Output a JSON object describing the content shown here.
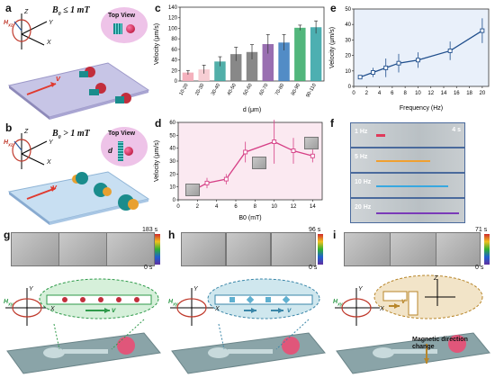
{
  "panels": {
    "a": {
      "label": "a",
      "condition": "B",
      "condition_sub": "0",
      "condition_rest": " ≤ 1 mT",
      "field": "H",
      "field_sub": "xz",
      "top_view": "Top View",
      "velocity": "v",
      "axis_x": "X",
      "axis_y": "Y",
      "axis_z": "Z"
    },
    "b": {
      "label": "b",
      "condition": "B",
      "condition_sub": "0",
      "condition_rest": " > 1 mT",
      "field": "H",
      "field_sub": "xz",
      "top_view": "Top View",
      "velocity": "v",
      "d_label": "d",
      "axis_x": "X",
      "axis_y": "Y",
      "axis_z": "Z"
    },
    "c": {
      "label": "c"
    },
    "d": {
      "label": "d"
    },
    "e": {
      "label": "e"
    },
    "f": {
      "label": "f",
      "time": "4 s",
      "rows": [
        "1 Hz",
        "5 Hz",
        "10 Hz",
        "20 Hz"
      ]
    },
    "g": {
      "label": "g",
      "time_max": "183 s",
      "time_min": "0 s",
      "field": "H",
      "field_sub": "xy",
      "velocity": "v",
      "axis_x": "X",
      "axis_y": "Y"
    },
    "h": {
      "label": "h",
      "time_max": "96 s",
      "time_min": "0 s",
      "field": "H",
      "field_sub": "xy",
      "velocity": "v",
      "axis_x": "X",
      "axis_y": "Y"
    },
    "i": {
      "label": "i",
      "time_max": "71 s",
      "time_min": "0 s",
      "field": "H",
      "field_sub": "xy",
      "velocity": "v",
      "axis_x": "X",
      "axis_y": "Y",
      "axis_z": "Z",
      "annotation": "Magnetic direction change"
    }
  },
  "colors": {
    "bar1": "#f3a9b6",
    "bar2": "#f6c9cf",
    "bar3": "#3ea6a0",
    "bar4": "#7b7b7b",
    "bar5": "#7b7b7b",
    "bar6": "#8e5fa8",
    "bar7": "#3f7fc0",
    "bar8": "#3fae6e",
    "bar9": "#3aa6a8",
    "line_d": "#d63f86",
    "line_e": "#1f4e8c"
  },
  "chart_data": [
    {
      "type": "bar",
      "panel": "c",
      "categories": [
        "10-20",
        "20-30",
        "30-40",
        "40-50",
        "50-60",
        "60-70",
        "70-80",
        "80-90",
        "90-110"
      ],
      "values": [
        16,
        22,
        37,
        51,
        55,
        70,
        73,
        101,
        102
      ],
      "errors": [
        4,
        8,
        9,
        13,
        14,
        18,
        15,
        5,
        12
      ],
      "xlabel": "d (μm)",
      "ylabel": "Velocity (μm/s)",
      "ylim": [
        0,
        140
      ],
      "yticks": [
        0,
        20,
        40,
        60,
        80,
        100,
        120,
        140
      ]
    },
    {
      "type": "line",
      "panel": "d",
      "x": [
        1,
        3,
        5,
        7,
        10,
        12,
        14
      ],
      "y": [
        5,
        13,
        16,
        37,
        45,
        38,
        34
      ],
      "errors": [
        2,
        4,
        4,
        8,
        17,
        10,
        5
      ],
      "xlabel": "B0 (mT)",
      "ylabel": "Velocity (μm/s)",
      "ylim": [
        0,
        60
      ],
      "xlim": [
        0,
        15
      ],
      "yticks": [
        0,
        10,
        20,
        30,
        40,
        50,
        60
      ],
      "xticks": [
        0,
        2,
        4,
        6,
        8,
        10,
        12,
        14
      ]
    },
    {
      "type": "line",
      "panel": "e",
      "x": [
        1,
        3,
        5,
        7,
        10,
        15,
        20
      ],
      "y": [
        6,
        9,
        12,
        15,
        17,
        23,
        36
      ],
      "errors": [
        1,
        3,
        6,
        6,
        5,
        6,
        8
      ],
      "xlabel": "Frequency (Hz)",
      "ylabel": "Velocity (μm/s)",
      "ylim": [
        0,
        50
      ],
      "xlim": [
        0,
        21
      ],
      "yticks": [
        0,
        10,
        20,
        30,
        40,
        50
      ],
      "xticks": [
        0,
        2,
        4,
        6,
        8,
        10,
        12,
        14,
        16,
        18,
        20
      ]
    }
  ]
}
